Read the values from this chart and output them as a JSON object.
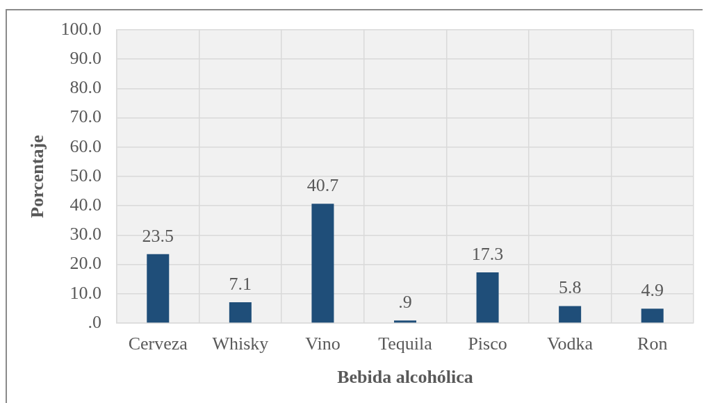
{
  "chart_data": {
    "type": "bar",
    "xlabel": "Bebida alcohólica",
    "ylabel": "Porcentaje",
    "categories": [
      "Cerveza",
      "Whisky",
      "Vino",
      "Tequila",
      "Pisco",
      "Vodka",
      "Ron"
    ],
    "values": [
      23.5,
      7.1,
      40.7,
      0.9,
      17.3,
      5.8,
      4.9
    ],
    "color": "#1f4e79",
    "value_labels": [
      "23.5",
      "7.1",
      "40.7",
      ".9",
      "17.3",
      "5.8",
      "4.9"
    ],
    "ylim": [
      0,
      100
    ],
    "yticks": [
      {
        "value": 0,
        "label": ".0"
      },
      {
        "value": 10,
        "label": "10.0"
      },
      {
        "value": 20,
        "label": "20.0"
      },
      {
        "value": 30,
        "label": "30.0"
      },
      {
        "value": 40,
        "label": "40.0"
      },
      {
        "value": 50,
        "label": "50.0"
      },
      {
        "value": 60,
        "label": "60.0"
      },
      {
        "value": 70,
        "label": "70.0"
      },
      {
        "value": 80,
        "label": "80.0"
      },
      {
        "value": 90,
        "label": "90.0"
      },
      {
        "value": 100,
        "label": "100.0"
      }
    ],
    "grid": true
  }
}
